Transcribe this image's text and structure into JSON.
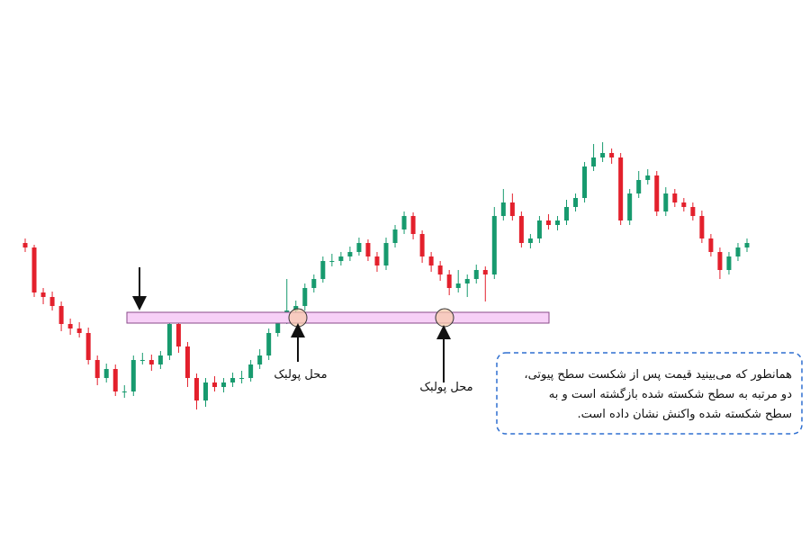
{
  "chart_data": {
    "type": "candlestick",
    "up_color": "#179a6e",
    "down_color": "#e3202c",
    "ylim": [
      0,
      600
    ],
    "open": [
      330,
      325,
      275,
      270,
      260,
      240,
      235,
      230,
      200,
      180,
      190,
      165,
      165,
      200,
      200,
      195,
      205,
      240,
      215,
      180,
      155,
      175,
      170,
      175,
      180,
      180,
      195,
      205,
      230,
      245,
      255,
      260,
      280,
      290,
      310,
      310,
      315,
      320,
      330,
      315,
      305,
      330,
      345,
      360,
      340,
      315,
      305,
      295,
      280,
      285,
      290,
      300,
      295,
      360,
      375,
      360,
      330,
      335,
      355,
      350,
      355,
      370,
      380,
      415,
      425,
      430,
      425,
      355,
      385,
      400,
      405,
      365,
      385,
      375,
      370,
      360,
      335,
      320,
      300,
      315,
      325
    ],
    "close": [
      325,
      275,
      270,
      260,
      240,
      235,
      230,
      200,
      180,
      190,
      165,
      165,
      200,
      200,
      195,
      205,
      240,
      215,
      180,
      155,
      175,
      170,
      175,
      180,
      180,
      195,
      205,
      230,
      245,
      255,
      260,
      280,
      290,
      310,
      310,
      315,
      320,
      330,
      315,
      305,
      330,
      345,
      360,
      340,
      315,
      305,
      295,
      280,
      285,
      290,
      300,
      295,
      360,
      375,
      360,
      330,
      335,
      355,
      350,
      355,
      370,
      380,
      415,
      425,
      430,
      425,
      355,
      385,
      400,
      405,
      365,
      385,
      375,
      370,
      360,
      335,
      320,
      300,
      315,
      325,
      330
    ],
    "high": [
      335,
      328,
      280,
      276,
      265,
      246,
      242,
      236,
      205,
      196,
      195,
      172,
      205,
      208,
      206,
      210,
      245,
      245,
      220,
      185,
      180,
      182,
      180,
      186,
      188,
      200,
      212,
      235,
      250,
      290,
      266,
      285,
      295,
      315,
      318,
      320,
      326,
      336,
      334,
      320,
      336,
      350,
      365,
      364,
      344,
      320,
      310,
      300,
      300,
      295,
      306,
      304,
      370,
      390,
      385,
      365,
      340,
      360,
      362,
      360,
      378,
      385,
      420,
      440,
      442,
      435,
      430,
      390,
      410,
      412,
      410,
      392,
      390,
      380,
      375,
      366,
      340,
      325,
      320,
      330,
      335
    ],
    "low": [
      320,
      270,
      262,
      255,
      232,
      228,
      225,
      195,
      172,
      175,
      160,
      158,
      160,
      195,
      188,
      190,
      200,
      208,
      170,
      145,
      148,
      165,
      164,
      170,
      174,
      176,
      190,
      200,
      226,
      240,
      250,
      255,
      275,
      286,
      304,
      305,
      310,
      316,
      310,
      298,
      300,
      325,
      340,
      334,
      308,
      298,
      288,
      272,
      275,
      270,
      285,
      265,
      290,
      355,
      355,
      325,
      324,
      330,
      345,
      344,
      350,
      365,
      375,
      410,
      420,
      418,
      350,
      350,
      380,
      395,
      360,
      360,
      370,
      365,
      355,
      330,
      315,
      290,
      295,
      310,
      320
    ],
    "zone": [
      241,
      253
    ],
    "pullback_label_1": "محل پولبک",
    "pullback_label_2": "محل پولبک",
    "note": [
      "همانطور که می‌بینید قیمت پس از شکست سطح پیوتی،",
      "دو مرتبه به سطح شکسته شده بازگشته است و به",
      "سطح شکسته شده واکنش نشان داده است."
    ]
  }
}
